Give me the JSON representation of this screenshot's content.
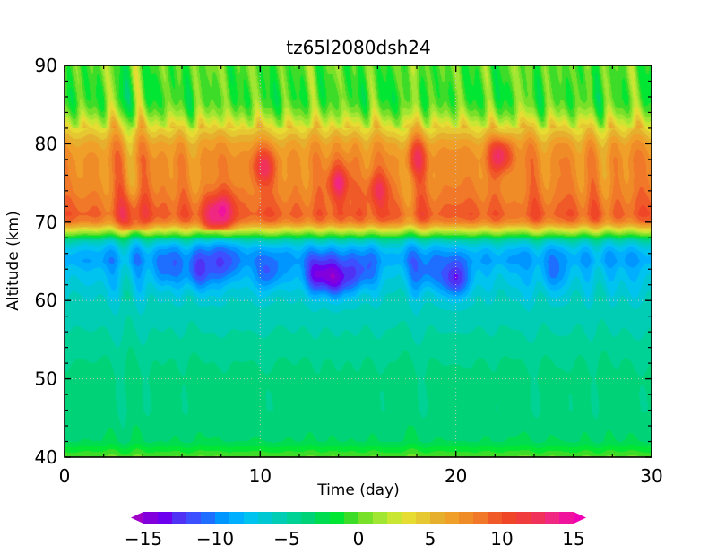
{
  "chart_data": {
    "type": "heatmap",
    "title": "tz65l2080dsh24",
    "xlabel": "Time (day)",
    "ylabel": "Altitude (km)",
    "xlim": [
      0,
      30
    ],
    "ylim": [
      40,
      90
    ],
    "x_ticks": [
      0,
      10,
      20,
      30
    ],
    "y_ticks": [
      40,
      50,
      60,
      70,
      80,
      90
    ],
    "dotted_gridlines": {
      "x": [
        10,
        20
      ],
      "y": [
        50,
        60
      ]
    },
    "colorbar": {
      "orientation": "horizontal",
      "range": [
        -15,
        15
      ],
      "ticks": [
        -15,
        -10,
        -5,
        0,
        5,
        10,
        15
      ],
      "tick_labels": [
        "−15",
        "−10",
        "−5",
        "0",
        "5",
        "10",
        "15"
      ],
      "levels": [
        -15,
        -14,
        -13,
        -12,
        -11,
        -10,
        -9,
        -8,
        -7,
        -6,
        -5,
        -4,
        -3,
        -2,
        -1,
        0,
        1,
        2,
        3,
        4,
        5,
        6,
        7,
        8,
        9,
        10,
        11,
        12,
        13,
        14,
        15
      ],
      "colors": [
        "#a000c8",
        "#8200dc",
        "#6e00f0",
        "#5032f5",
        "#3c50ff",
        "#1e6eff",
        "#0096ff",
        "#00afff",
        "#00c3f0",
        "#00c8d2",
        "#00cdb4",
        "#00d296",
        "#00d278",
        "#00dc50",
        "#00e632",
        "#3cdc28",
        "#78e028",
        "#a0e632",
        "#c8e632",
        "#e6dc32",
        "#e6c832",
        "#e6af2d",
        "#f0a028",
        "#f08c28",
        "#f07828",
        "#f05a28",
        "#f04628",
        "#f03c3c",
        "#f0325a",
        "#f02882",
        "#f0149c",
        "#f000b4"
      ]
    },
    "profile": {
      "altitude": [
        40,
        41,
        42,
        44,
        46,
        48,
        50,
        52,
        54,
        56,
        58,
        60,
        62,
        64,
        65,
        66,
        67,
        67.7,
        68.3,
        69,
        70,
        71,
        72,
        74,
        76,
        78,
        80,
        82,
        84,
        85,
        86,
        88,
        90
      ],
      "value": [
        0,
        -1.5,
        -3,
        -3.5,
        -3.8,
        -3.8,
        -3.7,
        -4,
        -4.5,
        -5,
        -5.5,
        -6,
        -7,
        -8,
        -9,
        -8.5,
        -7,
        -5,
        -0.5,
        3,
        8,
        9.5,
        9,
        8,
        7.5,
        7.5,
        6.5,
        4,
        1,
        0,
        -0.5,
        -0.3,
        0
      ]
    },
    "blue_minima": [
      {
        "day": 5.2,
        "altitude_km": 64.5,
        "value": -11
      },
      {
        "day": 6.8,
        "altitude_km": 64,
        "value": -12
      },
      {
        "day": 8.2,
        "altitude_km": 65,
        "value": -12
      },
      {
        "day": 10.5,
        "altitude_km": 64,
        "value": -11.5
      },
      {
        "day": 13,
        "altitude_km": 63.5,
        "value": -13.5
      },
      {
        "day": 14,
        "altitude_km": 63,
        "value": -13
      },
      {
        "day": 15.2,
        "altitude_km": 64,
        "value": -11.5
      },
      {
        "day": 18.5,
        "altitude_km": 64,
        "value": -11
      },
      {
        "day": 20,
        "altitude_km": 63,
        "value": -13
      },
      {
        "day": 25,
        "altitude_km": 64,
        "value": -10
      }
    ],
    "red_maxima": [
      {
        "day": 7.5,
        "altitude_km": 71,
        "value": 13
      },
      {
        "day": 8.2,
        "altitude_km": 71.5,
        "value": 12.5
      },
      {
        "day": 10.2,
        "altitude_km": 77,
        "value": 12
      },
      {
        "day": 14,
        "altitude_km": 75,
        "value": 13
      },
      {
        "day": 16,
        "altitude_km": 74,
        "value": 12
      },
      {
        "day": 22.3,
        "altitude_km": 78.5,
        "value": 13.5
      },
      {
        "day": 18,
        "altitude_km": 78,
        "value": 11
      },
      {
        "day": 3.5,
        "altitude_km": 71,
        "value": 11.5
      }
    ]
  }
}
